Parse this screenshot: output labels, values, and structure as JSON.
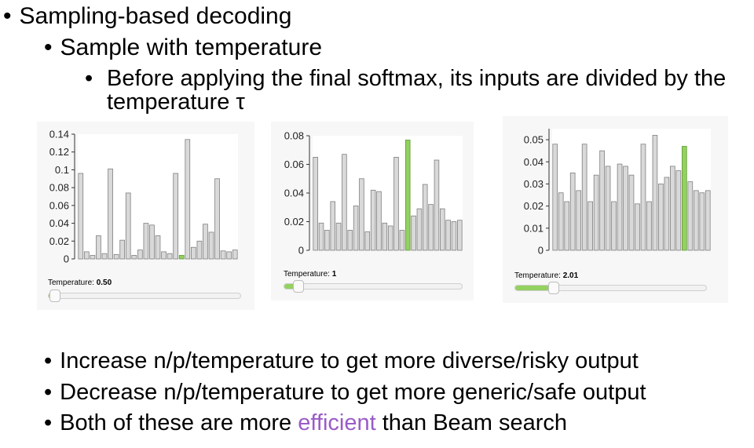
{
  "bullets": {
    "l1": "Sampling-based decoding",
    "l2": "Sample with temperature",
    "l3": "Before applying the final softmax, its inputs are divided by the temperature τ",
    "b1": "Increase n/p/temperature to get more diverse/risky output",
    "b2": "Decrease n/p/temperature to get more generic/safe output",
    "b3_pre": "Both of these are more ",
    "b3_hl": "efficient",
    "b3_post": " than Beam search",
    "dot": "•"
  },
  "colors": {
    "bar": "#d9d9d9",
    "bar_stroke": "#7f7f7f",
    "highlight": "#93d160",
    "highlight_stroke": "#5e9a33",
    "purple": "#9a5cc7"
  },
  "temperature_label": "Temperature:",
  "chart_data": [
    {
      "type": "bar",
      "temperature": "0.50",
      "slider_fraction": 0.03,
      "ylim": [
        0,
        0.14
      ],
      "yticks": [
        "0",
        "0.02",
        "0.04",
        "0.06",
        "0.08",
        "0.1",
        "0.12",
        "0.14"
      ],
      "ytick_values": [
        0,
        0.02,
        0.04,
        0.06,
        0.08,
        0.1,
        0.12,
        0.14
      ],
      "highlight_index": 17,
      "values": [
        0.096,
        0.008,
        0.004,
        0.026,
        0.006,
        0.101,
        0.005,
        0.021,
        0.074,
        0.004,
        0.01,
        0.04,
        0.038,
        0.026,
        0.008,
        0.006,
        0.096,
        0.004,
        0.134,
        0.013,
        0.02,
        0.039,
        0.03,
        0.09,
        0.009,
        0.008,
        0.01
      ]
    },
    {
      "type": "bar",
      "temperature": "1",
      "slider_fraction": 0.08,
      "ylim": [
        0,
        0.08
      ],
      "yticks": [
        "0",
        "0.02",
        "0.04",
        "0.06",
        "0.08"
      ],
      "ytick_values": [
        0,
        0.02,
        0.04,
        0.06,
        0.08
      ],
      "highlight_index": 16,
      "values": [
        0.065,
        0.019,
        0.014,
        0.034,
        0.019,
        0.067,
        0.014,
        0.031,
        0.05,
        0.013,
        0.042,
        0.041,
        0.019,
        0.017,
        0.065,
        0.014,
        0.077,
        0.024,
        0.029,
        0.046,
        0.032,
        0.063,
        0.029,
        0.021,
        0.02,
        0.021
      ]
    },
    {
      "type": "bar",
      "temperature": "2.01",
      "slider_fraction": 0.2,
      "ylim": [
        0,
        0.055
      ],
      "yticks": [
        "0",
        "0.01",
        "0.02",
        "0.03",
        "0.04",
        "0.05"
      ],
      "ytick_values": [
        0,
        0.01,
        0.02,
        0.03,
        0.04,
        0.05
      ],
      "highlight_index": 22,
      "values": [
        0.048,
        0.026,
        0.022,
        0.035,
        0.027,
        0.048,
        0.022,
        0.034,
        0.045,
        0.038,
        0.022,
        0.039,
        0.038,
        0.034,
        0.021,
        0.048,
        0.022,
        0.052,
        0.03,
        0.033,
        0.038,
        0.036,
        0.047,
        0.031,
        0.027,
        0.026,
        0.027
      ]
    }
  ]
}
